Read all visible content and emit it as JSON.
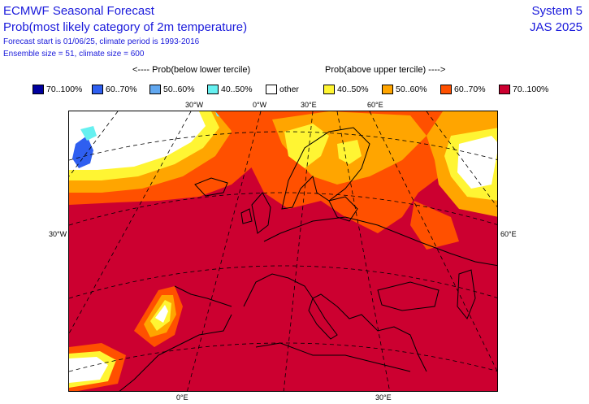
{
  "header": {
    "title": "ECMWF Seasonal Forecast",
    "subtitle": "Prob(most likely category of 2m temperature)",
    "forecast_info": "Forecast start is 01/06/25, climate period is 1993-2016",
    "ensemble_info": "Ensemble size = 51, climate size = 600",
    "system": "System 5",
    "season": "JAS 2025"
  },
  "legend": {
    "below_caption": "<---- Prob(below lower tercile)",
    "above_caption": "Prob(above upper tercile) ---->",
    "items": [
      {
        "label": "70..100%",
        "color": "#00009e"
      },
      {
        "label": "60..70%",
        "color": "#2f5ff0"
      },
      {
        "label": "50..60%",
        "color": "#62a8f0"
      },
      {
        "label": "40..50%",
        "color": "#66f0f0"
      },
      {
        "label": "other",
        "color": "#ffffff"
      },
      {
        "label": "40..50%",
        "color": "#fff533"
      },
      {
        "label": "50..60%",
        "color": "#ffa500"
      },
      {
        "label": "60..70%",
        "color": "#ff5000"
      },
      {
        "label": "70..100%",
        "color": "#cc0030"
      }
    ]
  },
  "axis_labels": {
    "top": [
      "30°W",
      "0°W",
      "30°E",
      "60°E"
    ],
    "left": "30°W",
    "right": "60°E",
    "bottom": [
      "0°E",
      "30°E"
    ]
  }
}
